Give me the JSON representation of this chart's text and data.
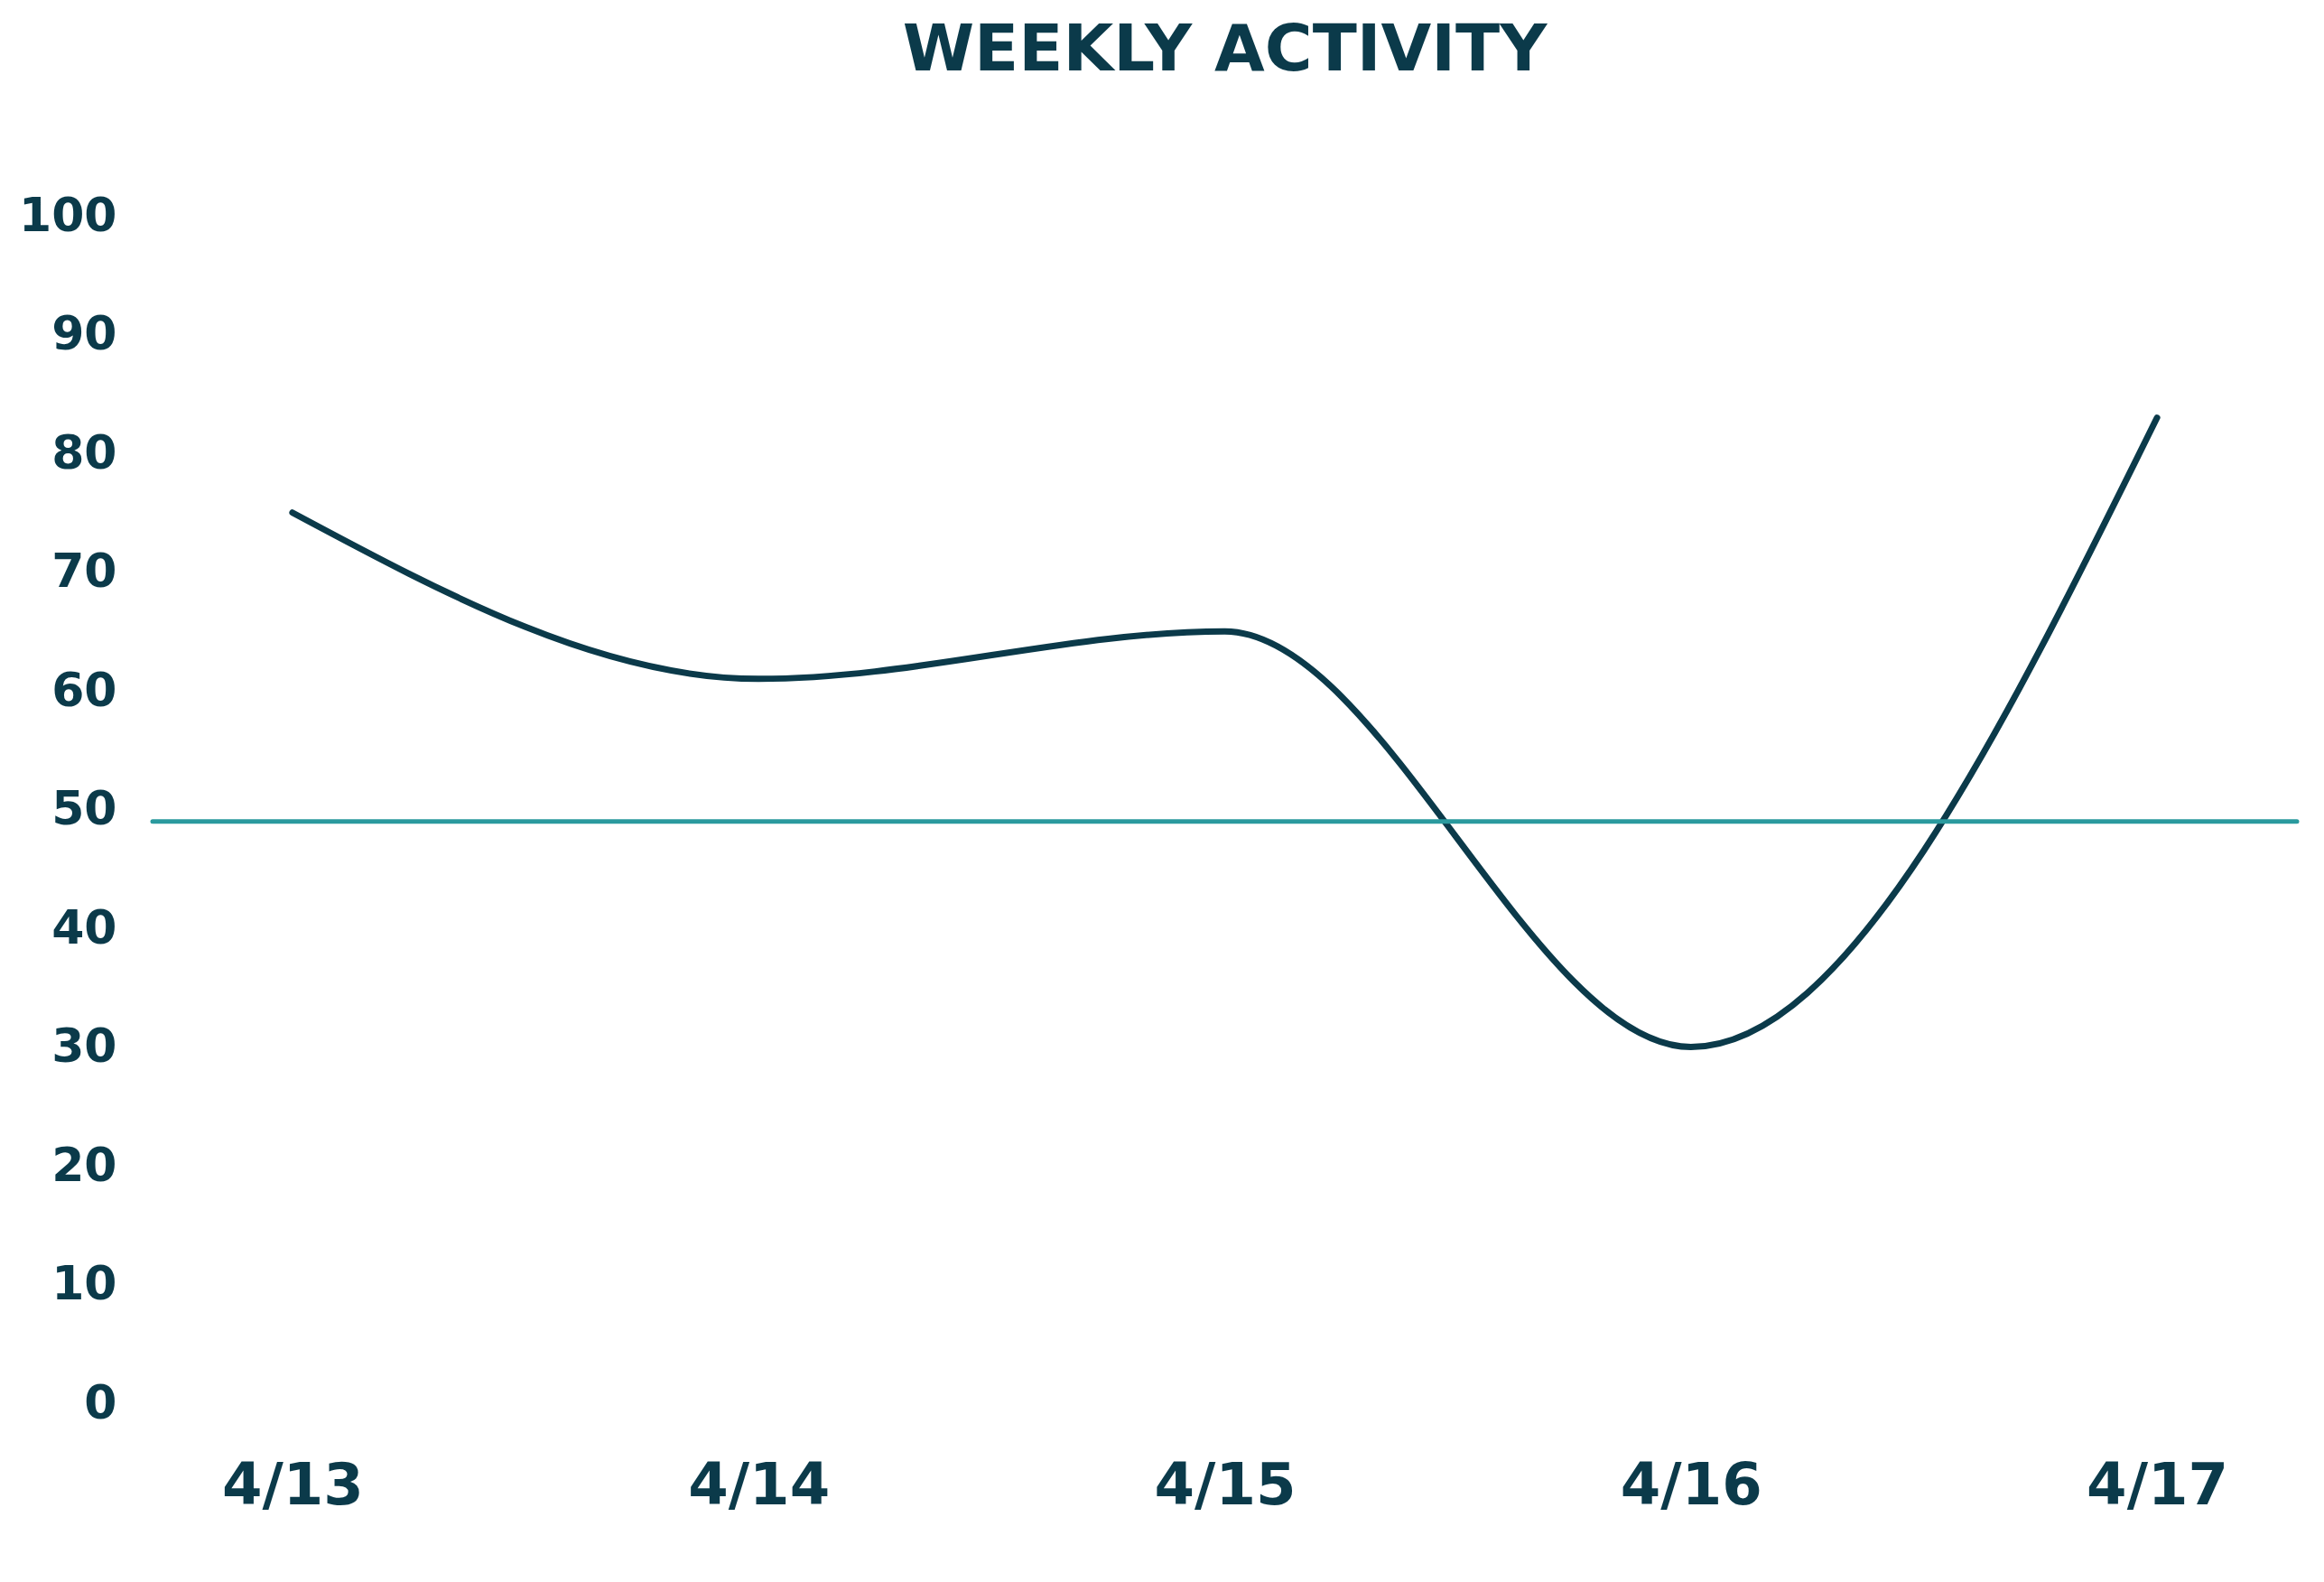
{
  "chart_data": {
    "type": "line",
    "title": "WEEKLY ACTIVITY",
    "categories": [
      "4/13",
      "4/14",
      "4/15",
      "4/16",
      "4/17"
    ],
    "series": [
      {
        "color": "#0b3a4a",
        "values": [
          75,
          61,
          65,
          30,
          83
        ]
      }
    ],
    "ylim": [
      0,
      100
    ],
    "yticks": [
      0,
      10,
      20,
      30,
      40,
      50,
      60,
      70,
      80,
      90,
      100
    ],
    "grid": false,
    "marker": "none",
    "line_style": "solid",
    "ref_lines": [
      {
        "axis": "y",
        "value": 49,
        "color": "#2a9a9e",
        "line_style": "solid"
      }
    ]
  }
}
